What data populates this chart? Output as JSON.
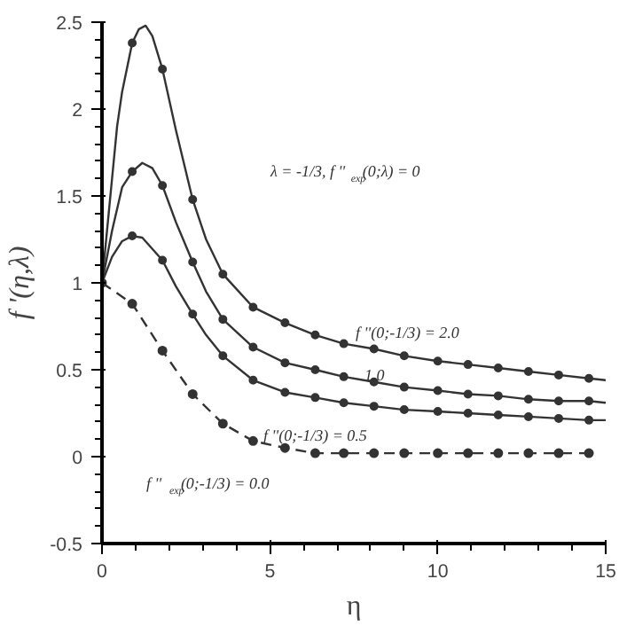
{
  "chart_data": {
    "type": "line",
    "xlabel": "η",
    "ylabel": "f '(η,λ)",
    "xlim": [
      0,
      15
    ],
    "ylim": [
      -0.5,
      2.5
    ],
    "xticks": [
      0,
      5,
      10,
      15
    ],
    "yticks": [
      -0.5,
      0,
      0.5,
      1,
      1.5,
      2,
      2.5
    ],
    "grid": false,
    "series": [
      {
        "color": "#333333",
        "marker": "none",
        "line_style": "solid",
        "x": [
          0,
          0.3,
          0.45,
          0.6,
          0.9,
          1.1,
          1.3,
          1.5,
          1.8,
          2.2,
          2.7,
          3.1,
          3.6,
          4.5,
          5.45,
          6.35,
          7.2,
          8.1,
          9.0,
          10.0,
          10.9,
          11.8,
          12.7,
          13.6,
          14.5,
          15
        ],
        "values": [
          1,
          1.6,
          1.9,
          2.1,
          2.38,
          2.46,
          2.48,
          2.42,
          2.23,
          1.88,
          1.48,
          1.25,
          1.05,
          0.86,
          0.77,
          0.7,
          0.65,
          0.62,
          0.58,
          0.55,
          0.53,
          0.51,
          0.49,
          0.47,
          0.45,
          0.44
        ]
      },
      {
        "type": "scatter",
        "color": "#333333",
        "marker": "circle",
        "x": [
          0.9,
          1.8,
          2.7,
          3.6,
          4.5,
          5.45,
          6.35,
          7.2,
          8.1,
          9.0,
          10.0,
          10.9,
          11.8,
          12.7,
          13.6,
          14.5
        ],
        "values": [
          2.38,
          2.23,
          1.48,
          1.05,
          0.86,
          0.77,
          0.7,
          0.65,
          0.62,
          0.58,
          0.55,
          0.53,
          0.51,
          0.49,
          0.47,
          0.45
        ]
      },
      {
        "color": "#333333",
        "marker": "none",
        "line_style": "solid",
        "x": [
          0,
          0.3,
          0.6,
          0.9,
          1.2,
          1.5,
          1.8,
          2.2,
          2.7,
          3.1,
          3.6,
          4.5,
          5.45,
          6.35,
          7.2,
          8.1,
          9.0,
          10.0,
          10.9,
          11.8,
          12.7,
          13.6,
          14.5,
          15
        ],
        "values": [
          1,
          1.3,
          1.55,
          1.64,
          1.69,
          1.66,
          1.56,
          1.35,
          1.12,
          0.95,
          0.79,
          0.63,
          0.54,
          0.5,
          0.46,
          0.43,
          0.4,
          0.38,
          0.36,
          0.35,
          0.33,
          0.32,
          0.32,
          0.31
        ]
      },
      {
        "type": "scatter",
        "color": "#333333",
        "marker": "circle",
        "x": [
          0.9,
          1.8,
          2.7,
          3.6,
          4.5,
          5.45,
          6.35,
          7.2,
          8.1,
          9.0,
          10.0,
          10.9,
          11.8,
          12.7,
          13.6,
          14.5
        ],
        "values": [
          1.64,
          1.56,
          1.12,
          0.79,
          0.63,
          0.54,
          0.5,
          0.46,
          0.43,
          0.4,
          0.38,
          0.36,
          0.35,
          0.33,
          0.32,
          0.32
        ]
      },
      {
        "color": "#333333",
        "marker": "none",
        "line_style": "solid",
        "x": [
          0,
          0.3,
          0.6,
          0.9,
          1.2,
          1.8,
          2.2,
          2.7,
          3.1,
          3.6,
          4.5,
          5.45,
          6.35,
          7.2,
          8.1,
          9.0,
          10.0,
          10.9,
          11.8,
          12.7,
          13.6,
          14.5,
          15
        ],
        "values": [
          1,
          1.15,
          1.24,
          1.27,
          1.26,
          1.13,
          0.98,
          0.82,
          0.7,
          0.58,
          0.44,
          0.37,
          0.34,
          0.31,
          0.29,
          0.27,
          0.26,
          0.25,
          0.24,
          0.23,
          0.22,
          0.21,
          0.21
        ]
      },
      {
        "type": "scatter",
        "color": "#333333",
        "marker": "circle",
        "x": [
          0.9,
          1.8,
          2.7,
          3.6,
          4.5,
          5.45,
          6.35,
          7.2,
          8.1,
          9.0,
          10.0,
          10.9,
          11.8,
          12.7,
          13.6,
          14.5
        ],
        "values": [
          1.27,
          1.13,
          0.82,
          0.58,
          0.44,
          0.37,
          0.34,
          0.31,
          0.29,
          0.27,
          0.26,
          0.25,
          0.24,
          0.23,
          0.22,
          0.21
        ]
      },
      {
        "color": "#333333",
        "marker": "circle",
        "line_style": "dashed",
        "x": [
          0,
          0.9,
          1.8,
          2.7,
          3.6,
          4.5,
          5.45,
          6.35,
          7.2,
          8.1,
          9.0,
          10.0,
          10.9,
          11.8,
          12.7,
          13.6,
          14.5
        ],
        "values": [
          1,
          0.88,
          0.61,
          0.36,
          0.19,
          0.09,
          0.05,
          0.02,
          0.02,
          0.02,
          0.02,
          0.02,
          0.02,
          0.02,
          0.02,
          0.02,
          0.02
        ]
      }
    ],
    "annotations": [
      {
        "text": "λ = -1/3, f ''$_{exp}$(0;λ) = 0"
      },
      "f ''(0;-1/3) = 2.0",
      "1.0",
      "f ''(0;-1/3) = 0.5",
      "f ''$_{exp}$(0;-1/3) = 0.0"
    ]
  }
}
